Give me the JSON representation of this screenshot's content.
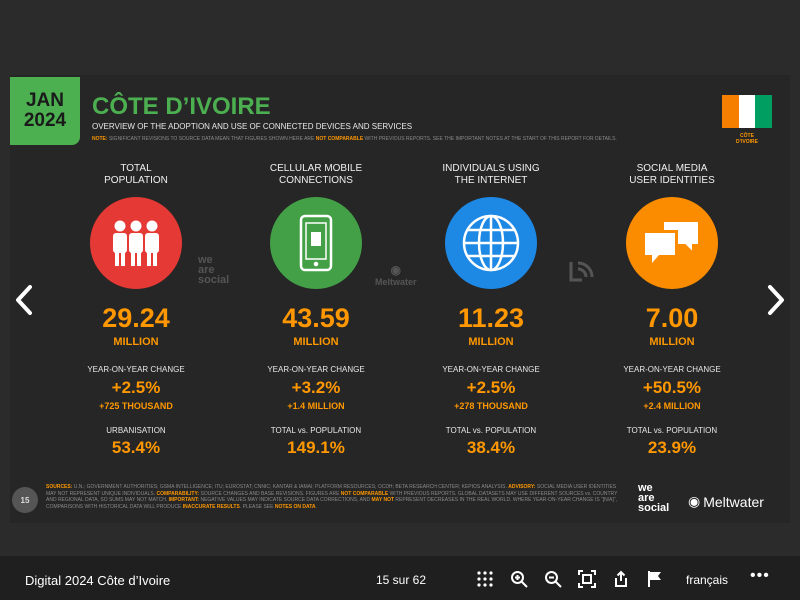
{
  "slide": {
    "date_month": "JAN",
    "date_year": "2024",
    "title": "CÔTE D’IVOIRE",
    "subtitle": "OVERVIEW OF THE ADOPTION AND USE OF CONNECTED DEVICES AND SERVICES",
    "note_label": "NOTE:",
    "note_text_1": " SIGNIFICANT REVISIONS TO SOURCE DATA MEAN THAT FIGURES SHOWN HERE ARE ",
    "note_hl": "NOT COMPARABLE",
    "note_text_2": " WITH PREVIOUS REPORTS. SEE THE IMPORTANT NOTES AT THE START OF THIS REPORT FOR DETAILS.",
    "flag_label_1": "CÔTE",
    "flag_label_2": "D’IVOIRE",
    "flag_colors": [
      "#f77f00",
      "#ffffff",
      "#009e60"
    ],
    "columns": [
      {
        "title_1": "TOTAL",
        "title_2": "POPULATION",
        "icon": "people-icon",
        "color": "#e53935",
        "value": "29.24",
        "unit": "MILLION",
        "yoy_label": "YEAR-ON-YEAR CHANGE",
        "yoy_pct": "+2.5%",
        "yoy_abs": "+725 THOUSAND",
        "stat_label": "URBANISATION",
        "stat_value": "53.4%"
      },
      {
        "title_1": "CELLULAR MOBILE",
        "title_2": "CONNECTIONS",
        "icon": "mobile-phone-icon",
        "color": "#43a047",
        "value": "43.59",
        "unit": "MILLION",
        "yoy_label": "YEAR-ON-YEAR CHANGE",
        "yoy_pct": "+3.2%",
        "yoy_abs": "+1.4 MILLION",
        "stat_label": "TOTAL vs. POPULATION",
        "stat_value": "149.1%"
      },
      {
        "title_1": "INDIVIDUALS USING",
        "title_2": "THE INTERNET",
        "icon": "globe-icon",
        "color": "#1e88e5",
        "value": "11.23",
        "unit": "MILLION",
        "yoy_label": "YEAR-ON-YEAR CHANGE",
        "yoy_pct": "+2.5%",
        "yoy_abs": "+278 THOUSAND",
        "stat_label": "TOTAL vs. POPULATION",
        "stat_value": "38.4%"
      },
      {
        "title_1": "SOCIAL MEDIA",
        "title_2": "USER IDENTITIES",
        "icon": "chat-bubbles-icon",
        "color": "#fb8c00",
        "value": "7.00",
        "unit": "MILLION",
        "yoy_label": "YEAR-ON-YEAR CHANGE",
        "yoy_pct": "+50.5%",
        "yoy_abs": "+2.4 MILLION",
        "stat_label": "TOTAL vs. POPULATION",
        "stat_value": "23.9%"
      }
    ],
    "watermark_ws": "we are social",
    "watermark_mw": "Meltwater",
    "sources_label": "SOURCES:",
    "sources_text_1": " U.N.; GOVERNMENT AUTHORITIES; GSMA INTELLIGENCE; ITU; EUROSTAT; CNNIC; KANTAR & IAMAI; PLATFORM RESOURCES; OCDH; BETA RESEARCH CENTER; KEPIOS ANALYSIS. ",
    "advisory_label": "ADVISORY:",
    "sources_text_2": " SOCIAL MEDIA USER IDENTITIES MAY NOT REPRESENT UNIQUE INDIVIDUALS. ",
    "comparability_label": "COMPARABILITY:",
    "sources_text_3": " SOURCE CHANGES AND BASE REVISIONS. FIGURES ARE ",
    "sources_hl_1": "NOT COMPARABLE",
    "sources_text_4": " WITH PREVIOUS REPORTS. GLOBAL DATASETS MAY USE DIFFERENT SOURCES vs. COUNTRY AND REGIONAL DATA, SO SUMS MAY NOT MATCH. ",
    "important_label": "IMPORTANT:",
    "sources_text_5": " NEGATIVE VALUES MAY INDICATE SOURCE DATA CORRECTIONS, AND ",
    "sources_hl_2": "MAY NOT",
    "sources_text_6": " REPRESENT DECREASES IN THE REAL WORLD. WHERE YEAR-ON-YEAR CHANGE IS “[N/A]”, COMPARISONS WITH HISTORICAL DATA WILL PRODUCE ",
    "sources_hl_3": "INACCURATE RESULTS",
    "sources_text_7": ". PLEASE SEE ",
    "sources_hl_4": "NOTES ON DATA",
    "sources_text_8": ".",
    "page_number": "15",
    "logo_ws_1": "we",
    "logo_ws_2": "are",
    "logo_ws_3": "social",
    "logo_mw": "Meltwater"
  },
  "toolbar": {
    "doc_title": "Digital 2024 Côte d’Ivoire",
    "page_indicator": "15 sur 62",
    "language": "français",
    "more": "•••"
  }
}
